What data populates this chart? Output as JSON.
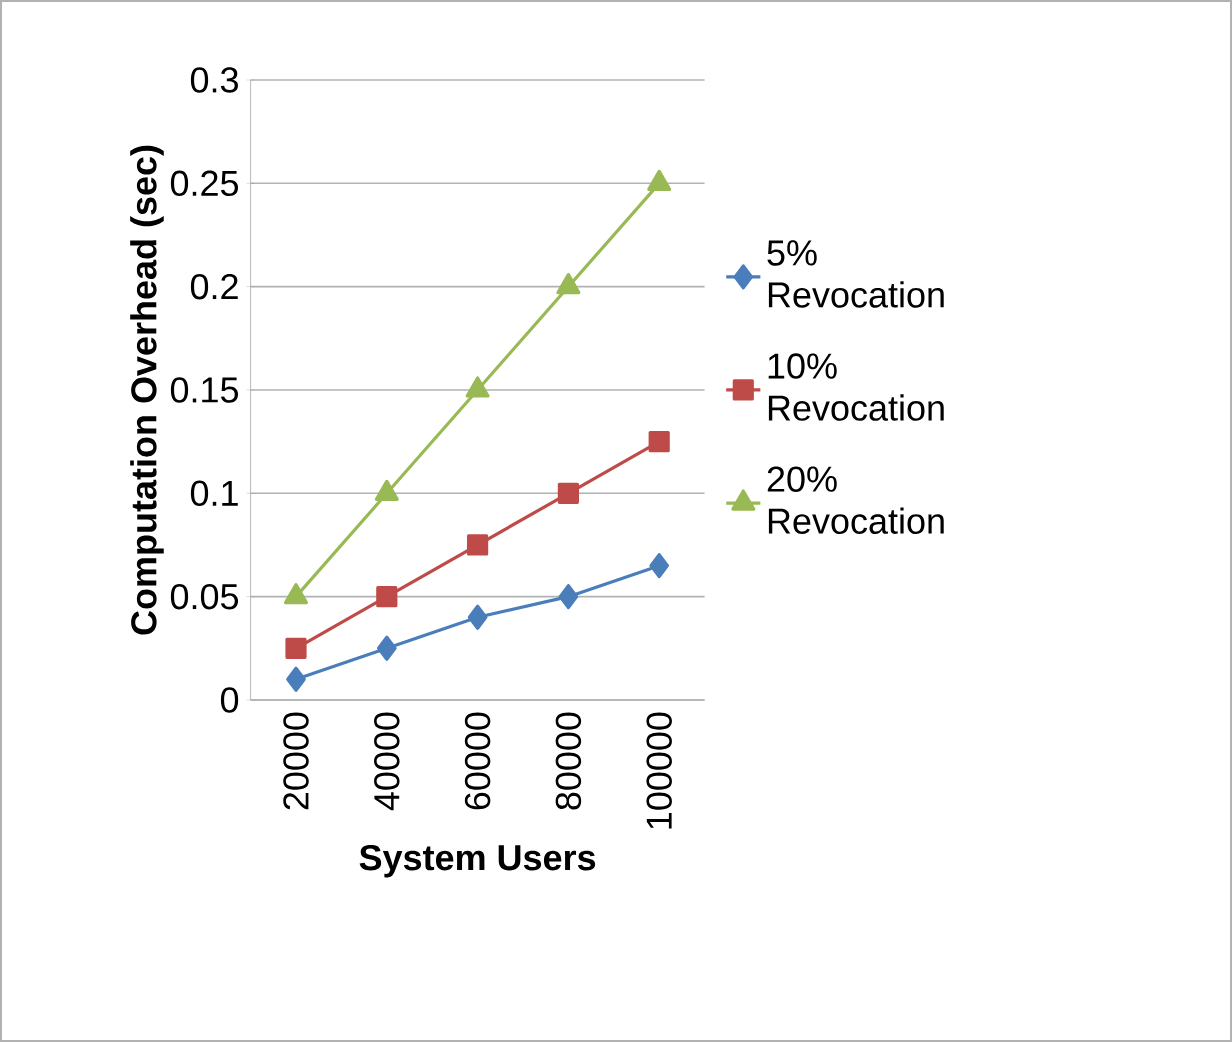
{
  "chart_data": {
    "type": "line",
    "xlabel": "System Users",
    "ylabel": "Computation Overhead (sec)",
    "categories": [
      "20000",
      "40000",
      "60000",
      "80000",
      "100000"
    ],
    "series": [
      {
        "name": "5% Revocation",
        "color": "#4a7ebb",
        "marker": "diamond",
        "values": [
          0.01,
          0.025,
          0.04,
          0.05,
          0.065
        ]
      },
      {
        "name": "10% Revocation",
        "color": "#be4b48",
        "marker": "square",
        "values": [
          0.025,
          0.05,
          0.075,
          0.1,
          0.125
        ]
      },
      {
        "name": "20% Revocation",
        "color": "#98b954",
        "marker": "triangle",
        "values": [
          0.05,
          0.1,
          0.15,
          0.2,
          0.25
        ]
      }
    ],
    "ylim": [
      0,
      0.3
    ],
    "yticks": [
      0,
      0.05,
      0.1,
      0.15,
      0.2,
      0.25,
      0.3
    ],
    "grid": "y",
    "legend": "right",
    "line_style": "solid"
  }
}
